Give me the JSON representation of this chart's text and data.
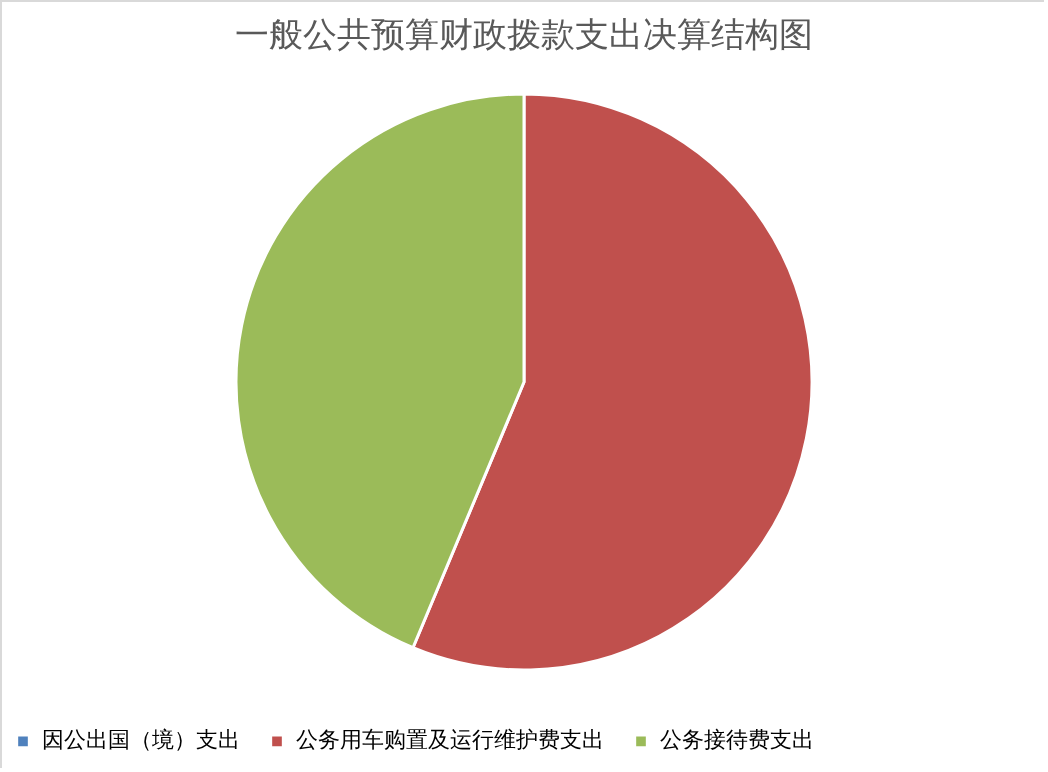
{
  "chart_data": {
    "type": "pie",
    "title": "一般公共预算财政拨款支出决算结构图",
    "categories": [
      "因公出国（境）支出",
      "公务用车购置及运行维护费支出",
      "公务接待费支出"
    ],
    "values": [
      0,
      56.3,
      43.7
    ],
    "colors": [
      "#4f81bd",
      "#c0504d",
      "#9bbb59"
    ],
    "legend": "bottom"
  }
}
